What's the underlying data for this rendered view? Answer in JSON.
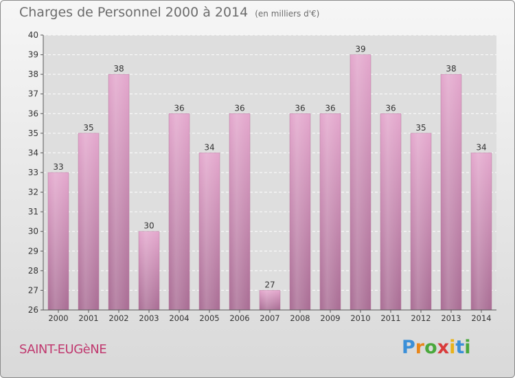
{
  "header": {
    "title": "Charges de Personnel 2000 à 2014",
    "unit": "(en milliers d'€)"
  },
  "footer": {
    "commune": "SAINT-EUGèNE",
    "logo": [
      "P",
      "r",
      "o",
      "x",
      "i",
      "t",
      "i"
    ]
  },
  "chart_data": {
    "type": "bar",
    "title": "Charges de Personnel 2000 à 2014",
    "subtitle": "(en milliers d'€)",
    "categories": [
      "2000",
      "2001",
      "2002",
      "2003",
      "2004",
      "2005",
      "2006",
      "2007",
      "2008",
      "2009",
      "2010",
      "2011",
      "2012",
      "2013",
      "2014"
    ],
    "values": [
      33,
      35,
      38,
      30,
      36,
      34,
      36,
      27,
      36,
      36,
      39,
      36,
      35,
      38,
      34
    ],
    "ylim": [
      26,
      40
    ],
    "yticks": [
      26,
      27,
      28,
      29,
      30,
      31,
      32,
      33,
      34,
      35,
      36,
      37,
      38,
      39,
      40
    ],
    "grid": true,
    "bar_color": "#cf8fb6"
  }
}
